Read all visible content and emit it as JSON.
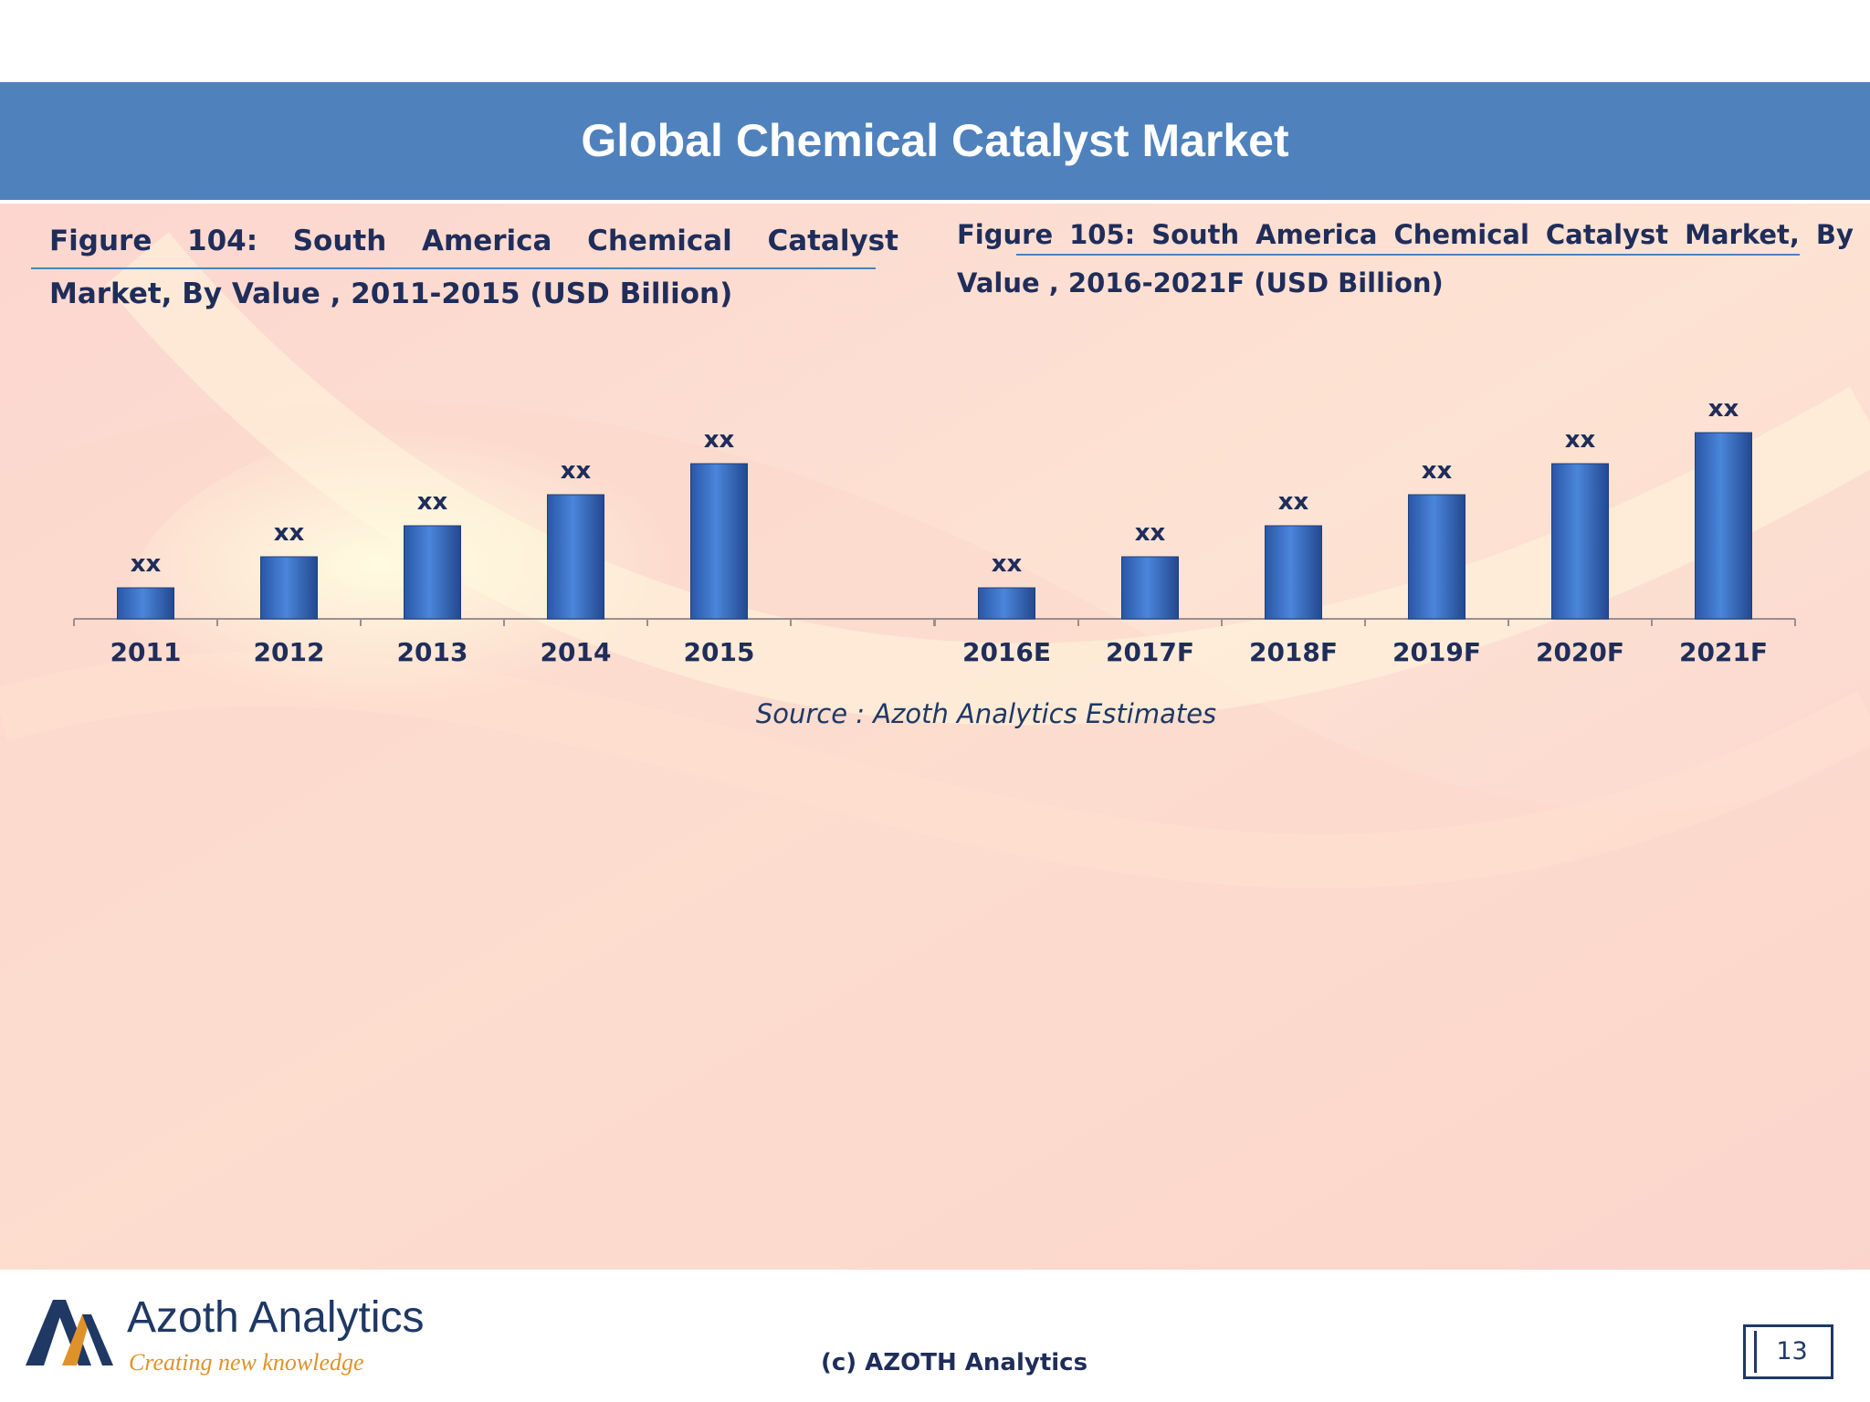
{
  "header": {
    "title": "Global Chemical Catalyst Market"
  },
  "figures": {
    "left": {
      "line1_words": [
        "Figure",
        "104:",
        "South",
        "America",
        "Chemical",
        "Catalyst"
      ],
      "line2": "Market, By Value , 2011-2015 (USD Billion)"
    },
    "right": {
      "line1_words": [
        "Figure",
        "105:",
        "South",
        "America",
        "Chemical",
        "Catalyst",
        "Market,",
        "By"
      ],
      "line2": "Value , 2016-2021F (USD Billion)"
    }
  },
  "chart_data": [
    {
      "type": "bar",
      "title": "Figure 104: South America Chemical Catalyst Market, By Value , 2011-2015 (USD Billion)",
      "categories": [
        "2011",
        "2012",
        "2013",
        "2014",
        "2015",
        ""
      ],
      "values": [
        1,
        2,
        3,
        4,
        5,
        null
      ],
      "data_labels": [
        "xx",
        "xx",
        "xx",
        "xx",
        "xx",
        ""
      ],
      "ylim": [
        0,
        6
      ],
      "grid": false,
      "color": "#3b6fc4",
      "note": "values withheld in the original (shown as xx); heights reflect relative rank only"
    },
    {
      "type": "bar",
      "title": "Figure 105: South America Chemical Catalyst Market, By Value , 2016-2021F (USD Billion)",
      "categories": [
        "2016E",
        "2017F",
        "2018F",
        "2019F",
        "2020F",
        "2021F"
      ],
      "values": [
        1,
        2,
        3,
        4,
        5,
        6
      ],
      "data_labels": [
        "xx",
        "xx",
        "xx",
        "xx",
        "xx",
        "xx"
      ],
      "ylim": [
        0,
        6
      ],
      "grid": false,
      "color": "#3b6fc4"
    }
  ],
  "source": "Source : Azoth Analytics Estimates",
  "footer": {
    "logo_name": "Azoth Analytics",
    "logo_tagline": "Creating new knowledge",
    "copyright": "(c) AZOTH Analytics",
    "page_number": "13"
  },
  "colors": {
    "header_band": "#4f81bd",
    "bar_fill": "#3b6fc4",
    "text_dark": "#1f2d5a",
    "logo_accent": "#e0922a"
  }
}
